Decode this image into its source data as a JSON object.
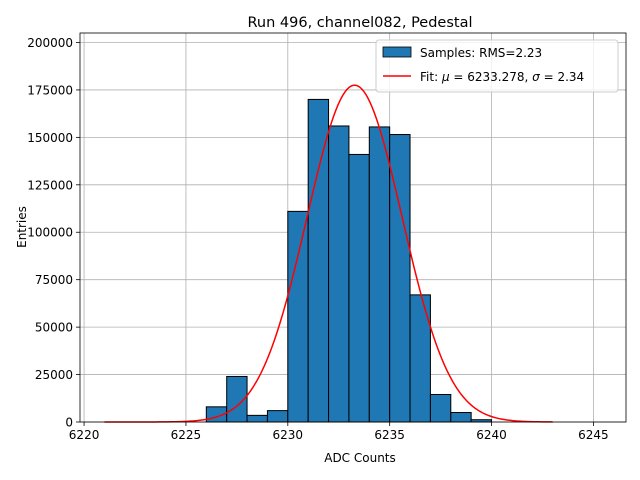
{
  "chart_data": {
    "type": "bar",
    "title": "Run 496, channel082, Pedestal",
    "xlabel": "ADC Counts",
    "ylabel": "Entries",
    "xlim": [
      6219.8,
      6246.6
    ],
    "ylim": [
      0,
      205000
    ],
    "xticks": [
      6220,
      6225,
      6230,
      6235,
      6240,
      6245
    ],
    "yticks": [
      0,
      25000,
      50000,
      75000,
      100000,
      125000,
      150000,
      175000,
      200000
    ],
    "grid": true,
    "legend_position": "top-right",
    "histogram": {
      "name": "Samples: RMS=2.23",
      "color": "#1f77b4",
      "bin_edges": [
        6226,
        6227,
        6228,
        6229,
        6230,
        6231,
        6232,
        6233,
        6234,
        6235,
        6236,
        6237,
        6238,
        6239,
        6240
      ],
      "counts": [
        8000,
        24000,
        3500,
        6000,
        111000,
        170000,
        156000,
        141000,
        155500,
        151500,
        67000,
        14500,
        5000,
        1200
      ]
    },
    "fit": {
      "name_prefix": "Fit: ",
      "mu_symbol": "μ",
      "mu_text": " = 6233.278, ",
      "sigma_symbol": "σ",
      "sigma_text": " = 2.34",
      "color": "#ff0000",
      "mu": 6233.278,
      "sigma": 2.34,
      "amplitude": 177500,
      "x_range": [
        6221,
        6243
      ]
    }
  }
}
